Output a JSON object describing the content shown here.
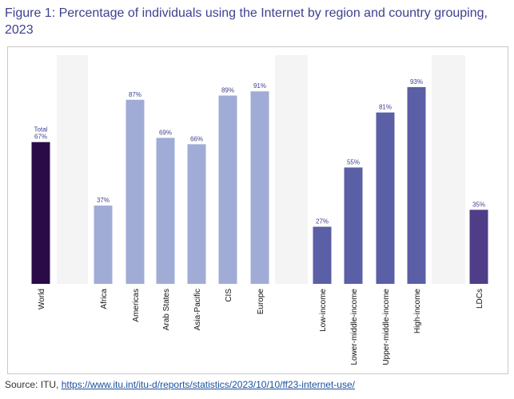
{
  "figure": {
    "title": "Figure 1: Percentage of individuals using the Internet by region and country grouping, 2023"
  },
  "source": {
    "prefix": "Source: ITU, ",
    "link_text": "https://www.itu.int/itu-d/reports/statistics/2023/10/10/ff23-internet-use/"
  },
  "colors": {
    "world": "#2a0b47",
    "regions": "#a0acd6",
    "income": "#5a5fa6",
    "ldcs": "#4f3d87",
    "value_label": "#3e4190",
    "band": "#f4f4f4"
  },
  "chart_data": {
    "type": "bar",
    "categories": [
      "World",
      "Africa",
      "Americas",
      "Arab States",
      "Asia-Pacific",
      "CIS",
      "Europe",
      "Low-income",
      "Lower-middle-income",
      "Upper-middle-income",
      "High-income",
      "LDCs"
    ],
    "values": [
      67,
      37,
      87,
      69,
      66,
      89,
      91,
      27,
      55,
      81,
      93,
      35
    ],
    "data_labels": [
      "Total\n67%",
      "37%",
      "87%",
      "69%",
      "66%",
      "89%",
      "91%",
      "27%",
      "55%",
      "81%",
      "93%",
      "35%"
    ],
    "groups": [
      "world",
      "regions",
      "regions",
      "regions",
      "regions",
      "regions",
      "regions",
      "income",
      "income",
      "income",
      "income",
      "ldcs"
    ],
    "ylim": [
      0,
      100
    ],
    "grid": false,
    "legend": "none"
  }
}
